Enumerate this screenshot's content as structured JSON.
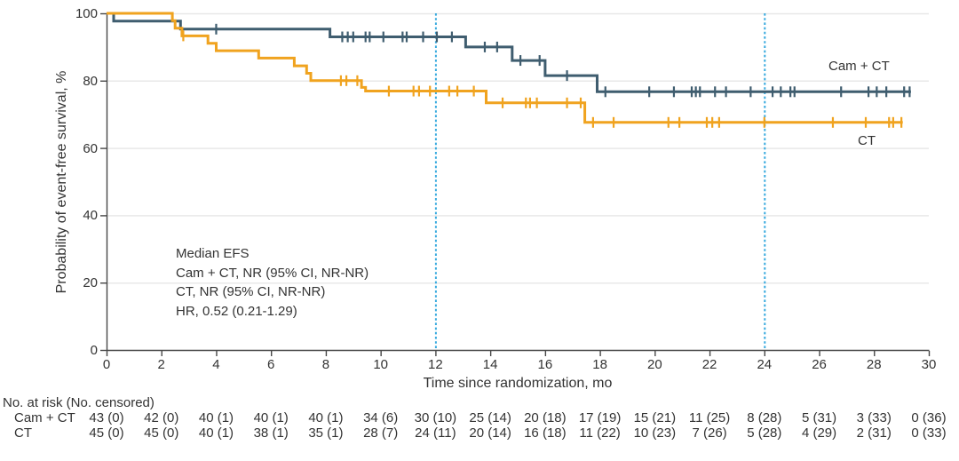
{
  "chart_data": {
    "type": "line",
    "subtype": "kaplan-meier-step-curves",
    "title": "",
    "xlabel": "Time since randomization, mo",
    "ylabel": "Probability of event-free survival, %",
    "xlim": [
      0,
      30
    ],
    "ylim": [
      0,
      100
    ],
    "x_ticks": [
      0,
      2,
      4,
      6,
      8,
      10,
      12,
      14,
      16,
      18,
      20,
      22,
      24,
      26,
      28,
      30
    ],
    "y_ticks": [
      0,
      20,
      40,
      60,
      80,
      100
    ],
    "grid": "horizontal-only",
    "reference_lines_x": [
      12,
      24
    ],
    "colors": {
      "camct": "#3F5D6F",
      "ct": "#F0A31F",
      "reference_line": "#36A9DE",
      "grid": "#E8E8E8",
      "axis": "#474747",
      "text": "#333333"
    },
    "series": [
      {
        "name": "Cam + CT",
        "color": "#3F5D6F",
        "start": [
          0,
          100
        ],
        "end_time": 29.35,
        "steps": [
          [
            0.26,
            97.7
          ],
          [
            2.7,
            95.3
          ],
          [
            8.15,
            93.0
          ],
          [
            13.1,
            90.0
          ],
          [
            14.8,
            86.0
          ],
          [
            16.0,
            81.5
          ],
          [
            17.9,
            76.7
          ]
        ],
        "censors": [
          [
            4.0,
            95.3
          ],
          [
            8.6,
            93
          ],
          [
            8.8,
            93
          ],
          [
            9.0,
            93
          ],
          [
            9.45,
            93
          ],
          [
            9.6,
            93
          ],
          [
            10.1,
            93
          ],
          [
            10.8,
            93
          ],
          [
            10.95,
            93
          ],
          [
            11.55,
            93
          ],
          [
            12.05,
            93
          ],
          [
            12.6,
            93
          ],
          [
            13.8,
            90
          ],
          [
            14.25,
            90
          ],
          [
            15.1,
            86
          ],
          [
            15.8,
            86
          ],
          [
            16.8,
            81.5
          ],
          [
            18.2,
            76.7
          ],
          [
            19.8,
            76.7
          ],
          [
            20.7,
            76.7
          ],
          [
            21.35,
            76.7
          ],
          [
            21.5,
            76.7
          ],
          [
            21.65,
            76.7
          ],
          [
            22.2,
            76.7
          ],
          [
            22.6,
            76.7
          ],
          [
            23.5,
            76.7
          ],
          [
            24.3,
            76.7
          ],
          [
            24.6,
            76.7
          ],
          [
            24.95,
            76.7
          ],
          [
            25.1,
            76.7
          ],
          [
            26.8,
            76.7
          ],
          [
            27.8,
            76.7
          ],
          [
            28.1,
            76.7
          ],
          [
            28.45,
            76.7
          ],
          [
            29.1,
            76.7
          ],
          [
            29.3,
            76.7
          ]
        ]
      },
      {
        "name": "CT",
        "color": "#F0A31F",
        "start": [
          0,
          100
        ],
        "end_time": 29.05,
        "steps": [
          [
            2.4,
            97.8
          ],
          [
            2.5,
            95.6
          ],
          [
            2.75,
            93.3
          ],
          [
            3.7,
            91.1
          ],
          [
            4.0,
            88.9
          ],
          [
            5.55,
            86.7
          ],
          [
            6.85,
            84.4
          ],
          [
            7.3,
            82.2
          ],
          [
            7.45,
            80.0
          ],
          [
            9.3,
            78.0
          ],
          [
            9.45,
            76.9
          ],
          [
            13.85,
            73.4
          ],
          [
            17.45,
            67.6
          ]
        ],
        "censors": [
          [
            2.8,
            93.3
          ],
          [
            8.55,
            80
          ],
          [
            8.75,
            80
          ],
          [
            9.15,
            80
          ],
          [
            10.3,
            76.9
          ],
          [
            11.2,
            76.9
          ],
          [
            11.4,
            76.9
          ],
          [
            11.8,
            76.9
          ],
          [
            12.5,
            76.9
          ],
          [
            12.8,
            76.9
          ],
          [
            13.4,
            76.9
          ],
          [
            14.45,
            73.4
          ],
          [
            15.3,
            73.4
          ],
          [
            15.45,
            73.4
          ],
          [
            15.7,
            73.4
          ],
          [
            16.8,
            73.4
          ],
          [
            17.3,
            73.4
          ],
          [
            17.75,
            67.6
          ],
          [
            18.5,
            67.6
          ],
          [
            20.5,
            67.6
          ],
          [
            20.9,
            67.6
          ],
          [
            21.9,
            67.6
          ],
          [
            22.1,
            67.6
          ],
          [
            22.35,
            67.6
          ],
          [
            24.0,
            67.6
          ],
          [
            26.5,
            67.6
          ],
          [
            27.7,
            67.6
          ],
          [
            28.55,
            67.6
          ],
          [
            28.7,
            67.6
          ],
          [
            29.0,
            67.6
          ]
        ]
      }
    ],
    "annotation": {
      "lines": [
        "Median EFS",
        "Cam + CT, NR (95% CI, NR-NR)",
        "CT, NR (95% CI, NR-NR)",
        "HR, 0.52 (0.21-1.29)"
      ]
    },
    "at_risk": {
      "header": "No. at risk (No. censored)",
      "times": [
        0,
        2,
        4,
        6,
        8,
        10,
        12,
        14,
        16,
        18,
        20,
        22,
        24,
        26,
        28,
        30
      ],
      "rows": [
        {
          "label": "Cam + CT",
          "values": [
            "43 (0)",
            "42 (0)",
            "40 (1)",
            "40 (1)",
            "40 (1)",
            "34 (6)",
            "30 (10)",
            "25 (14)",
            "20 (18)",
            "17 (19)",
            "15 (21)",
            "11 (25)",
            "8 (28)",
            "5 (31)",
            "3 (33)",
            "0 (36)"
          ]
        },
        {
          "label": "CT",
          "values": [
            "45 (0)",
            "45 (0)",
            "40 (1)",
            "38 (1)",
            "35 (1)",
            "28 (7)",
            "24 (11)",
            "20 (14)",
            "16 (18)",
            "11 (22)",
            "10 (23)",
            "7 (26)",
            "5 (28)",
            "4 (29)",
            "2 (31)",
            "0 (33)"
          ]
        }
      ]
    }
  }
}
